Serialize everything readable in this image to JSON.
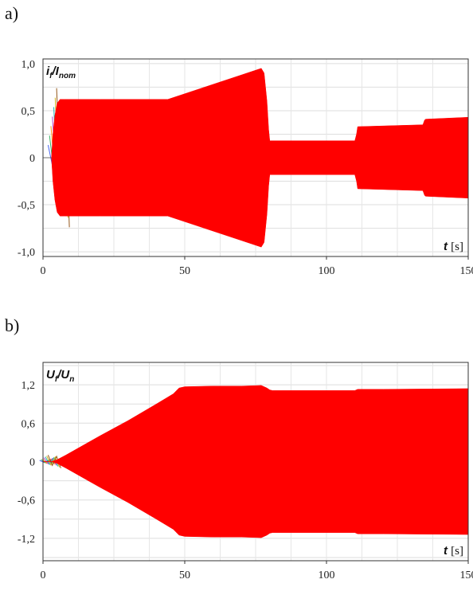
{
  "panel_labels": [
    "a)",
    "b)"
  ],
  "chart_data": [
    {
      "type": "area",
      "panel": "a)",
      "ylabel": {
        "main": "i",
        "sub": "f",
        "sep": "/I",
        "sub2": "nom"
      },
      "xlabel": {
        "var": "t",
        "unit": "[s]"
      },
      "xlim": [
        0,
        150
      ],
      "ylim": [
        -1.05,
        1.05
      ],
      "xticks": [
        0,
        50,
        100,
        150
      ],
      "xtick_labels": [
        "0",
        "50",
        "100",
        "150"
      ],
      "yticks": [
        1.0,
        0.5,
        0,
        -0.5,
        -1.0
      ],
      "ytick_labels": [
        "1,0",
        "0,5",
        "0",
        "-0,5",
        "-1,0"
      ],
      "grid": true,
      "series_color": "#ff0000",
      "envelope": {
        "x": [
          3.0,
          3.5,
          4.2,
          5.0,
          6.0,
          7.5,
          9.0,
          20,
          44,
          50,
          60,
          70,
          77,
          78,
          79,
          79.6,
          80,
          110,
          110.6,
          111,
          134,
          134.6,
          135,
          150
        ],
        "upper": [
          0.0,
          0.25,
          0.45,
          0.58,
          0.62,
          0.62,
          0.62,
          0.62,
          0.62,
          0.68,
          0.78,
          0.88,
          0.95,
          0.9,
          0.6,
          0.3,
          0.18,
          0.18,
          0.25,
          0.33,
          0.35,
          0.4,
          0.41,
          0.43
        ]
      }
    },
    {
      "type": "area",
      "panel": "b)",
      "ylabel": {
        "main": "U",
        "sub": "f",
        "sep": "/U",
        "sub2": "n"
      },
      "xlabel": {
        "var": "t",
        "unit": "[s]"
      },
      "xlim": [
        0,
        150
      ],
      "ylim": [
        -1.55,
        1.55
      ],
      "xticks": [
        0,
        50,
        100,
        150
      ],
      "xtick_labels": [
        "0",
        "50",
        "100",
        "150"
      ],
      "yticks": [
        1.2,
        0.6,
        0,
        -0.6,
        -1.2
      ],
      "ytick_labels": [
        "1,2",
        "0,6",
        "0",
        "-0,6",
        "-1,2"
      ],
      "grid": true,
      "series_color": "#ff0000",
      "envelope": {
        "x": [
          0,
          3.0,
          5.0,
          8.0,
          20,
          30,
          40,
          46,
          48,
          50,
          60,
          70,
          77,
          79,
          80,
          81,
          100,
          110,
          111,
          120,
          150
        ],
        "upper": [
          0.0,
          0.0,
          0.03,
          0.1,
          0.4,
          0.64,
          0.9,
          1.06,
          1.15,
          1.17,
          1.18,
          1.18,
          1.19,
          1.15,
          1.12,
          1.11,
          1.11,
          1.11,
          1.13,
          1.13,
          1.14
        ]
      }
    }
  ]
}
